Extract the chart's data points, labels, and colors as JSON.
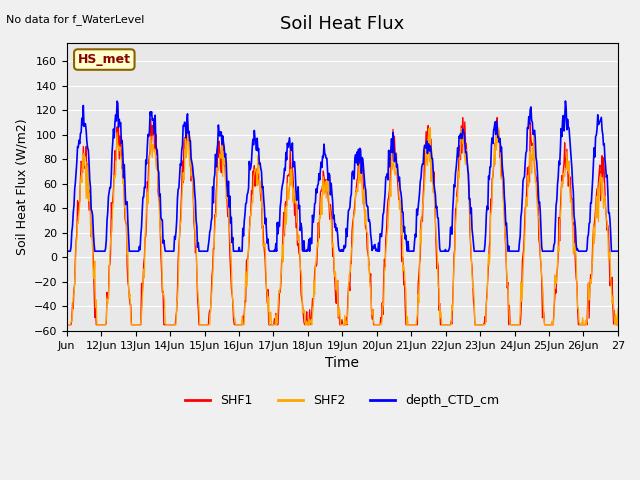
{
  "title": "Soil Heat Flux",
  "xlabel": "Time",
  "ylabel": "Soil Heat Flux (W/m2)",
  "top_left_text": "No data for f_WaterLevel",
  "legend_box_text": "HS_met",
  "ylim": [
    -60,
    175
  ],
  "yticks": [
    -60,
    -40,
    -20,
    0,
    20,
    40,
    60,
    80,
    100,
    120,
    140,
    160
  ],
  "xtick_positions": [
    11,
    12,
    13,
    14,
    15,
    16,
    17,
    18,
    19,
    20,
    21,
    22,
    23,
    24,
    25,
    26,
    27
  ],
  "xtick_labels": [
    "Jun",
    "12Jun",
    "13Jun",
    "14Jun",
    "15Jun",
    "16Jun",
    "17Jun",
    "18Jun",
    "19Jun",
    "20Jun",
    "21Jun",
    "22Jun",
    "23Jun",
    "24Jun",
    "25Jun",
    "26Jun",
    "27"
  ],
  "series_colors": {
    "SHF1": "#ff0000",
    "SHF2": "#ffa500",
    "depth_CTD_cm": "#0000ff"
  },
  "background_color": "#e8e8e8",
  "grid_color": "#ffffff",
  "n_days": 16,
  "points_per_day": 48
}
